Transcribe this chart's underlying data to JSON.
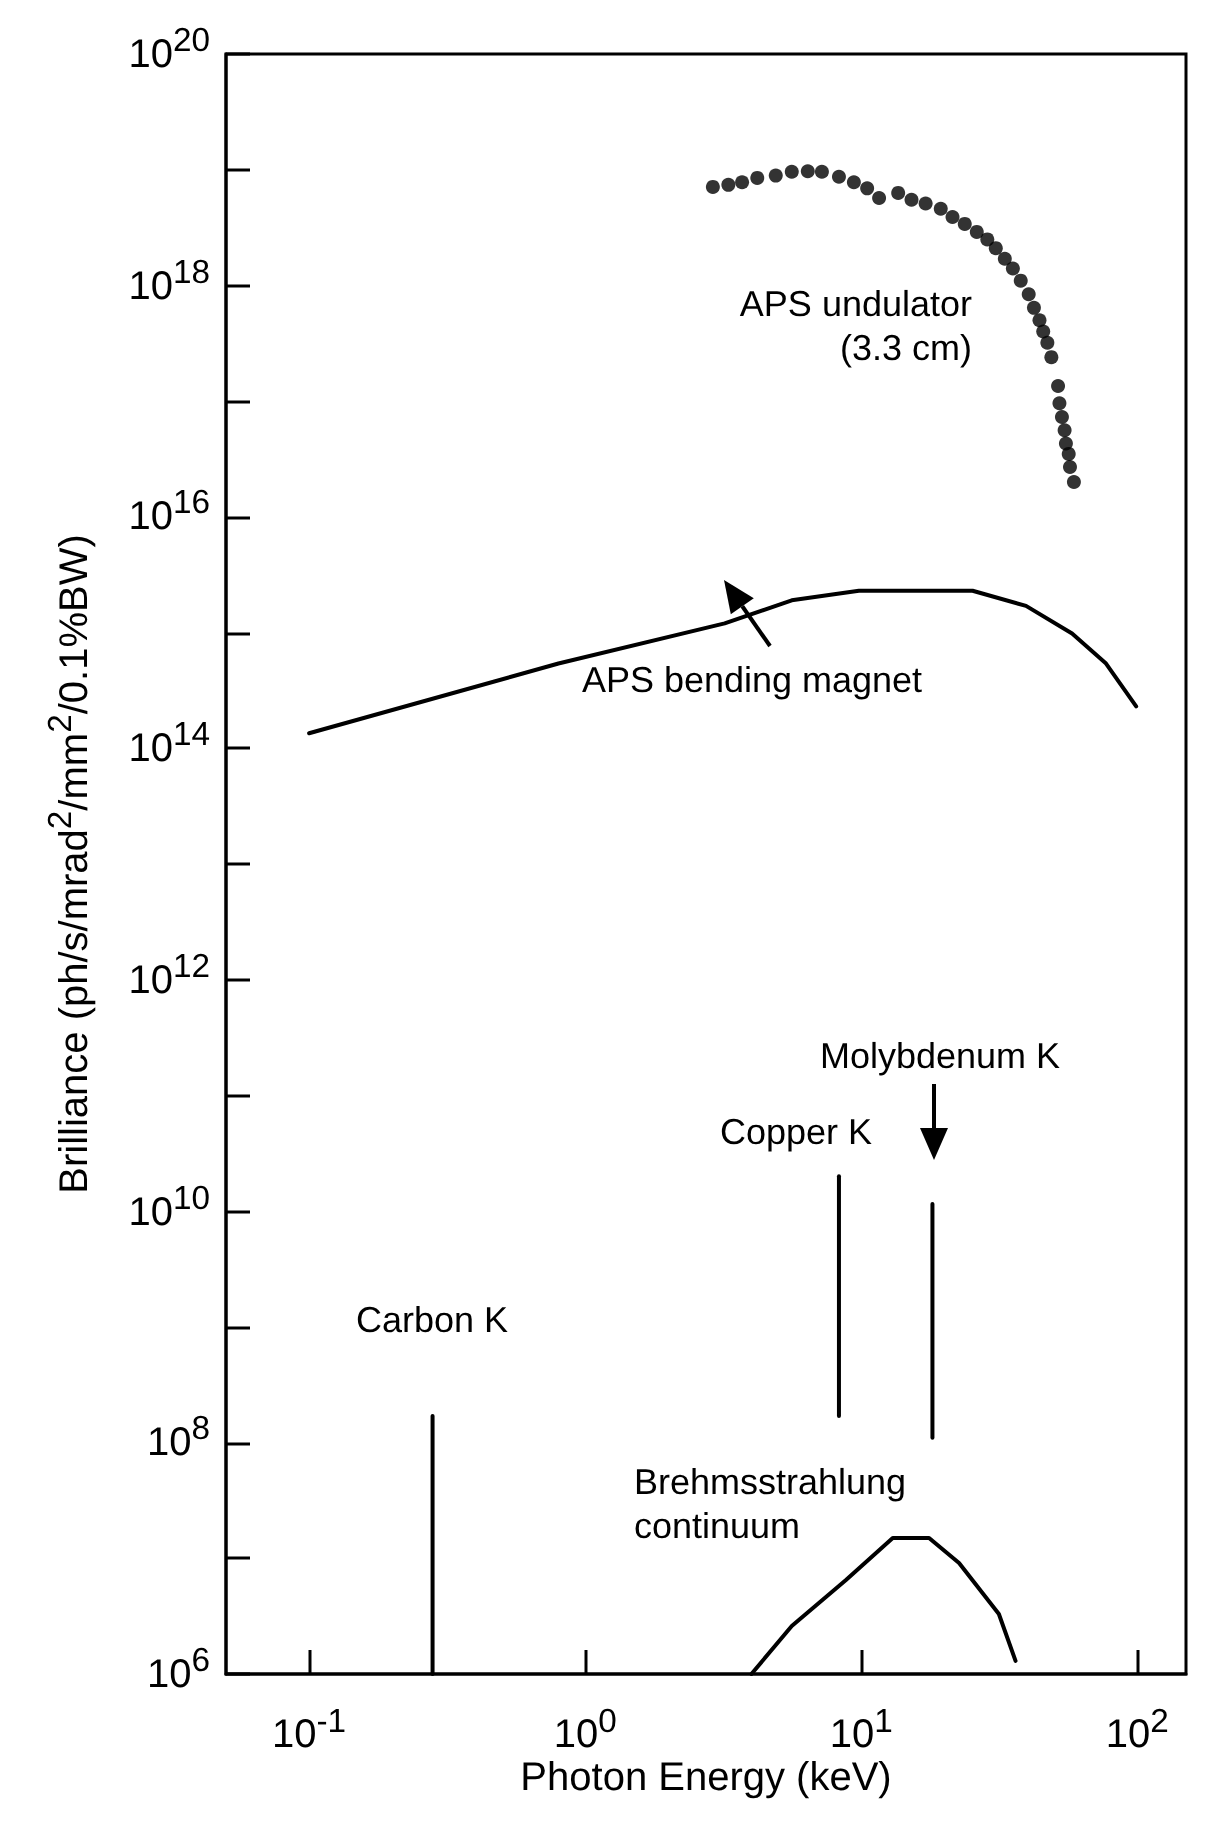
{
  "chart_data": {
    "type": "line",
    "xlabel": "Photon Energy (keV)",
    "ylabel": "Brilliance (ph/s/mrad$^{2}$/mm$^{2}$/0.1%BW)",
    "log": "xy",
    "grid": false,
    "line_style": "solid",
    "xlim": [
      0.05,
      150
    ],
    "ylim": [
      1000000.0,
      1e+20
    ],
    "xticks": [
      {
        "value": 0.1,
        "label": "10$^{-1}$"
      },
      {
        "value": 1,
        "label": "10$^{0}$"
      },
      {
        "value": 10,
        "label": "10$^{1}$"
      },
      {
        "value": 100,
        "label": "10$^{2}$"
      }
    ],
    "yticks": [
      {
        "value": 1000000.0,
        "label": "10$^{6}$"
      },
      {
        "value": 10000000.0,
        "label": null
      },
      {
        "value": 100000000.0,
        "label": "10$^{8}$"
      },
      {
        "value": 1000000000.0,
        "label": null
      },
      {
        "value": 10000000000.0,
        "label": "10$^{10}$"
      },
      {
        "value": 100000000000.0,
        "label": null
      },
      {
        "value": 1000000000000.0,
        "label": "10$^{12}$"
      },
      {
        "value": 10000000000000.0,
        "label": null
      },
      {
        "value": 100000000000000.0,
        "label": "10$^{14}$"
      },
      {
        "value": 1000000000000000.0,
        "label": null
      },
      {
        "value": 1e+16,
        "label": "10$^{16}$"
      },
      {
        "value": 1e+17,
        "label": null
      },
      {
        "value": 1e+18,
        "label": "10$^{18}$"
      },
      {
        "value": 1e+19,
        "label": null
      },
      {
        "value": 1e+20,
        "label": "10$^{20}$"
      }
    ],
    "series": [
      {
        "type": "scatter",
        "marker": "circle",
        "color": "#000000",
        "x": [
          2.9,
          3.3,
          3.7,
          4.2,
          4.9,
          5.6,
          6.4,
          7.2,
          8.3,
          9.4,
          10.5,
          11.6,
          13.6,
          15.2,
          17.1,
          19.4,
          21.4,
          23.7,
          26.2,
          28.6,
          30.7,
          33.1,
          35.4,
          37.8,
          40.4,
          42.2,
          44.2,
          45.6,
          47.2,
          48.8,
          51.6,
          52.2,
          53.3,
          54.5,
          55.1,
          56.4,
          57.0,
          58.9
        ],
        "values": [
          7.1e+18,
          7.4e+18,
          7.8e+18,
          8.5e+18,
          8.9e+18,
          9.6e+18,
          9.7e+18,
          9.6e+18,
          8.7e+18,
          7.8e+18,
          6.9e+18,
          5.7e+18,
          6.3e+18,
          5.5e+18,
          5.1e+18,
          4.6e+18,
          3.9e+18,
          3.4e+18,
          2.9e+18,
          2.5e+18,
          2.1e+18,
          1.7e+18,
          1.4e+18,
          1.1e+18,
          8.4e+17,
          6.4e+17,
          5e+17,
          4e+17,
          3.2e+17,
          2.4e+17,
          1.35e+17,
          9.6e+16,
          7.3e+16,
          5.6e+16,
          4.3e+16,
          3.5e+16,
          2.7e+16,
          2e+16
        ]
      },
      {
        "color": "#000000",
        "x": [
          0.1,
          0.8,
          3.2,
          5.6,
          9.8,
          25.3,
          39.5,
          58,
          77,
          99
        ],
        "values": [
          135000000000000.0,
          540000000000000.0,
          1200000000000000.0,
          1900000000000000.0,
          2300000000000000.0,
          2300000000000000.0,
          1700000000000000.0,
          980000000000000.0,
          540000000000000.0,
          230000000000000.0
        ]
      },
      {
        "color": "#000000",
        "x": [
          4.0,
          5.6,
          8.8,
          13.0,
          17.6,
          22.6,
          31.5,
          36.2
        ],
        "values": [
          1000000.0,
          2600000.0,
          6500000.0,
          15000000.0,
          15000000.0,
          9100000.0,
          3300000.0,
          1300000.0
        ]
      },
      {
        "color": "#000000",
        "x": [
          0.28,
          0.28
        ],
        "values": [
          1000000.0,
          170000000.0
        ]
      },
      {
        "color": "#000000",
        "x": [
          8.3,
          8.3
        ],
        "values": [
          170000000.0,
          20000000000.0
        ]
      },
      {
        "color": "#000000",
        "x": [
          18.1,
          18.1
        ],
        "values": [
          110000000.0,
          11500000000.0
        ]
      }
    ],
    "annotations": [
      "APS undulator\n(3.3 cm)",
      "APS bending magnet",
      "Molybdenum K",
      "Copper K",
      "Carbon K",
      "Brehmsstrahlung\ncontinuum"
    ]
  }
}
